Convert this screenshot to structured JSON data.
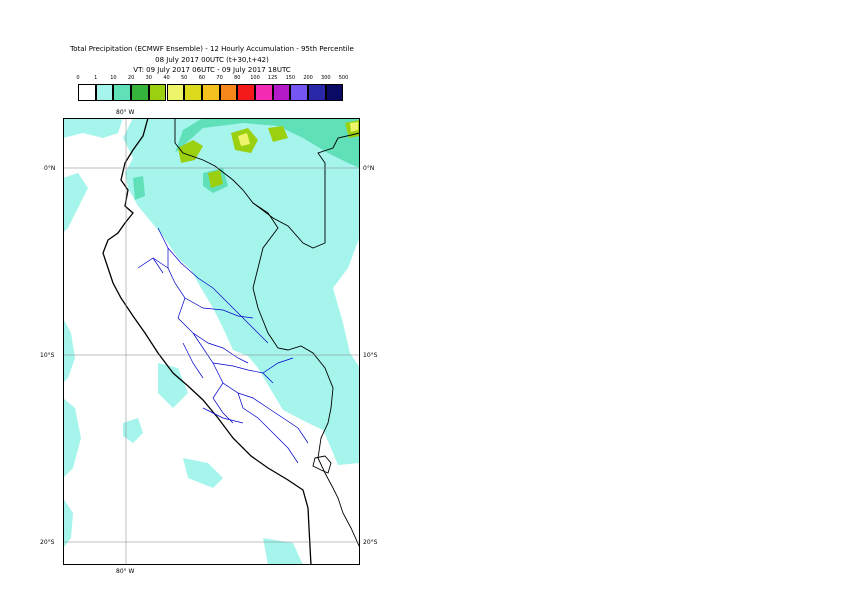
{
  "title": {
    "line1": "Total Precipitation (ECMWF Ensemble) - 12 Hourly Accumulation - 95th Percentile",
    "line2": "08 July 2017 00UTC (t+30,t+42)",
    "line3": "VT: 09 July 2017 06UTC - 09 July 2017 18UTC"
  },
  "legend": {
    "thresholds": [
      "0",
      "1",
      "10",
      "20",
      "30",
      "40",
      "50",
      "60",
      "70",
      "80",
      "100",
      "125",
      "150",
      "200",
      "300",
      "500"
    ],
    "colors": [
      "#ffffff",
      "#a5f5ec",
      "#5fe0b8",
      "#35b33a",
      "#9ad00f",
      "#eef56a",
      "#dcda1c",
      "#f5c11e",
      "#f5861a",
      "#f51a1a",
      "#f52ab5",
      "#b51ac8",
      "#7556f2",
      "#2a28a8",
      "#0a0a64"
    ]
  },
  "axes": {
    "lon_top": "80° W",
    "lon_bottom": "80° W",
    "lat_left": [
      "0°N",
      "10°S",
      "20°S"
    ],
    "lat_right": [
      "0°N",
      "10°S",
      "20°S"
    ]
  },
  "map_colors": {
    "ocean": "#ffffff",
    "precip_light": "#a5f5ec",
    "precip_medium": "#5fe0b8",
    "precip_heavy": "#9ad00f",
    "precip_very_heavy": "#eef56a",
    "border": "#000000",
    "regions": "#0000cc",
    "grid": "#808080"
  }
}
